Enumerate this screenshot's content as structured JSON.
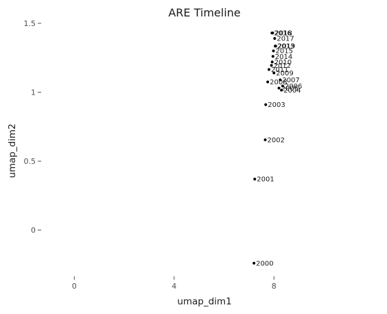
{
  "chart_data": {
    "type": "scatter",
    "title": "ARE Timeline",
    "xlabel": "umap_dim1",
    "ylabel": "umap_dim2",
    "xlim": [
      -1.3,
      12.2
    ],
    "ylim": [
      -0.33,
      1.52
    ],
    "x_ticks": [
      0,
      4,
      8
    ],
    "x_tick_labels": [
      "0",
      "4",
      "8"
    ],
    "y_ticks": [
      0,
      0.5,
      1,
      1.5
    ],
    "y_tick_labels": [
      "0",
      "0.5",
      "1",
      "1.5"
    ],
    "grid": false,
    "legend": "none",
    "point_color": "#000000",
    "points": [
      {
        "label": "2000",
        "x": 7.2,
        "y": -0.24
      },
      {
        "label": "2001",
        "x": 7.23,
        "y": 0.37
      },
      {
        "label": "2002",
        "x": 7.65,
        "y": 0.655
      },
      {
        "label": "2003",
        "x": 7.67,
        "y": 0.91
      },
      {
        "label": "2004",
        "x": 8.3,
        "y": 1.015
      },
      {
        "label": "2005",
        "x": 8.2,
        "y": 1.03
      },
      {
        "label": "2006",
        "x": 8.35,
        "y": 1.045
      },
      {
        "label": "2007",
        "x": 8.25,
        "y": 1.09
      },
      {
        "label": "2008",
        "x": 7.75,
        "y": 1.075
      },
      {
        "label": "2009",
        "x": 8.0,
        "y": 1.14
      },
      {
        "label": "2010",
        "x": 7.93,
        "y": 1.22
      },
      {
        "label": "2011",
        "x": 7.8,
        "y": 1.165
      },
      {
        "label": "2012",
        "x": 7.9,
        "y": 1.195
      },
      {
        "label": "2013",
        "x": 8.05,
        "y": 1.335
      },
      {
        "label": "2014",
        "x": 7.96,
        "y": 1.26
      },
      {
        "label": "2015",
        "x": 7.98,
        "y": 1.3
      },
      {
        "label": "2016",
        "x": 7.92,
        "y": 1.43
      },
      {
        "label": "2017",
        "x": 8.03,
        "y": 1.39
      },
      {
        "label": "2018",
        "x": 7.95,
        "y": 1.43
      },
      {
        "label": "2019",
        "x": 8.07,
        "y": 1.335
      }
    ]
  }
}
